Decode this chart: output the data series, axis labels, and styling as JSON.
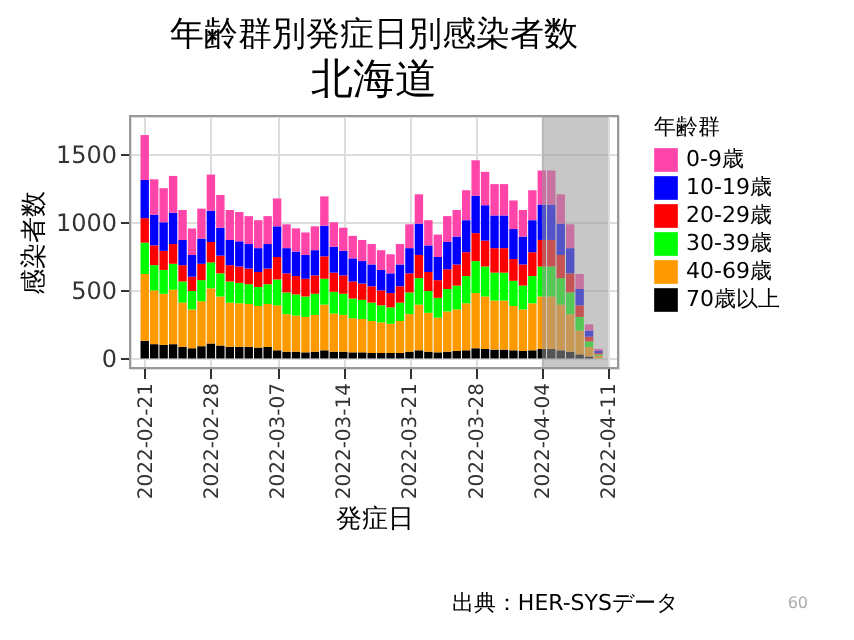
{
  "chart_data": {
    "type": "bar",
    "stacked": true,
    "title": "年齢群別発症日別感染者数",
    "subtitle": "北海道",
    "xlabel": "発症日",
    "ylabel": "感染者数",
    "legend_title": "年齢群",
    "legend": "right",
    "grid": true,
    "x": [
      "2022-02-21",
      "2022-02-22",
      "2022-02-23",
      "2022-02-24",
      "2022-02-25",
      "2022-02-26",
      "2022-02-27",
      "2022-02-28",
      "2022-03-01",
      "2022-03-02",
      "2022-03-03",
      "2022-03-04",
      "2022-03-05",
      "2022-03-06",
      "2022-03-07",
      "2022-03-08",
      "2022-03-09",
      "2022-03-10",
      "2022-03-11",
      "2022-03-12",
      "2022-03-13",
      "2022-03-14",
      "2022-03-15",
      "2022-03-16",
      "2022-03-17",
      "2022-03-18",
      "2022-03-19",
      "2022-03-20",
      "2022-03-21",
      "2022-03-22",
      "2022-03-23",
      "2022-03-24",
      "2022-03-25",
      "2022-03-26",
      "2022-03-27",
      "2022-03-28",
      "2022-03-29",
      "2022-03-30",
      "2022-03-31",
      "2022-04-01",
      "2022-04-02",
      "2022-04-03",
      "2022-04-04",
      "2022-04-05",
      "2022-04-06",
      "2022-04-07",
      "2022-04-08",
      "2022-04-09",
      "2022-04-10"
    ],
    "xlim": [
      "2022-02-20T12:00",
      "2022-04-11"
    ],
    "xticks": [
      "2022-02-21",
      "2022-02-28",
      "2022-03-07",
      "2022-03-14",
      "2022-03-21",
      "2022-03-28",
      "2022-04-04",
      "2022-04-11"
    ],
    "ylim": [
      -70,
      1780
    ],
    "yticks": [
      0,
      500,
      1000,
      1500
    ],
    "series": [
      {
        "name": "70歳以上",
        "color": "#000000",
        "values": [
          130,
          105,
          100,
          105,
          85,
          75,
          90,
          110,
          95,
          85,
          85,
          85,
          80,
          85,
          60,
          50,
          50,
          45,
          50,
          60,
          50,
          50,
          45,
          45,
          40,
          40,
          40,
          40,
          50,
          60,
          50,
          45,
          50,
          55,
          60,
          75,
          70,
          65,
          65,
          60,
          55,
          60,
          70,
          70,
          60,
          50,
          30,
          15,
          null
        ]
      },
      {
        "name": "40-69歳",
        "color": "#ff9900",
        "values": [
          490,
          395,
          375,
          400,
          325,
          285,
          330,
          405,
          360,
          325,
          320,
          315,
          305,
          315,
          330,
          275,
          265,
          260,
          270,
          335,
          280,
          270,
          250,
          245,
          235,
          225,
          215,
          235,
          275,
          335,
          285,
          255,
          295,
          305,
          345,
          405,
          385,
          360,
          360,
          325,
          305,
          345,
          385,
          385,
          335,
          275,
          175,
          70,
          20
        ]
      },
      {
        "name": "30-39歳",
        "color": "#00ff00",
        "values": [
          230,
          185,
          175,
          190,
          155,
          135,
          155,
          190,
          170,
          155,
          150,
          145,
          140,
          145,
          190,
          160,
          155,
          150,
          155,
          190,
          160,
          155,
          145,
          140,
          135,
          125,
          120,
          135,
          160,
          195,
          160,
          145,
          165,
          175,
          200,
          235,
          220,
          205,
          205,
          185,
          175,
          200,
          220,
          220,
          195,
          160,
          100,
          40,
          10
        ]
      },
      {
        "name": "20-29歳",
        "color": "#ff0000",
        "values": [
          180,
          145,
          140,
          145,
          120,
          105,
          120,
          150,
          130,
          120,
          120,
          115,
          110,
          115,
          165,
          140,
          135,
          130,
          135,
          165,
          140,
          135,
          125,
          120,
          120,
          110,
          105,
          120,
          140,
          170,
          140,
          130,
          145,
          155,
          175,
          205,
          190,
          180,
          180,
          160,
          155,
          175,
          195,
          195,
          170,
          140,
          85,
          35,
          10
        ]
      },
      {
        "name": "10-19歳",
        "color": "#0000ff",
        "values": [
          280,
          225,
          210,
          230,
          185,
          160,
          185,
          230,
          205,
          185,
          185,
          180,
          175,
          180,
          225,
          185,
          180,
          175,
          185,
          225,
          190,
          180,
          170,
          165,
          160,
          150,
          145,
          160,
          185,
          230,
          195,
          170,
          200,
          205,
          235,
          275,
          260,
          240,
          240,
          220,
          205,
          235,
          260,
          260,
          230,
          185,
          120,
          45,
          15
        ]
      },
      {
        "name": "0-9歳",
        "color": "#ff44aa",
        "values": [
          330,
          260,
          250,
          270,
          220,
          195,
          220,
          265,
          240,
          220,
          215,
          205,
          205,
          205,
          205,
          175,
          170,
          165,
          175,
          215,
          180,
          170,
          165,
          155,
          150,
          145,
          140,
          150,
          175,
          215,
          185,
          165,
          190,
          195,
          220,
          260,
          245,
          230,
          230,
          210,
          195,
          220,
          250,
          250,
          215,
          175,
          110,
          45,
          15
        ]
      }
    ],
    "bands": [
      {
        "axis": "x",
        "from": "2022-04-04",
        "to": "2022-04-11",
        "color": "#999999"
      }
    ],
    "annotations": [
      "出典：HER-SYSデータ",
      "60"
    ]
  }
}
